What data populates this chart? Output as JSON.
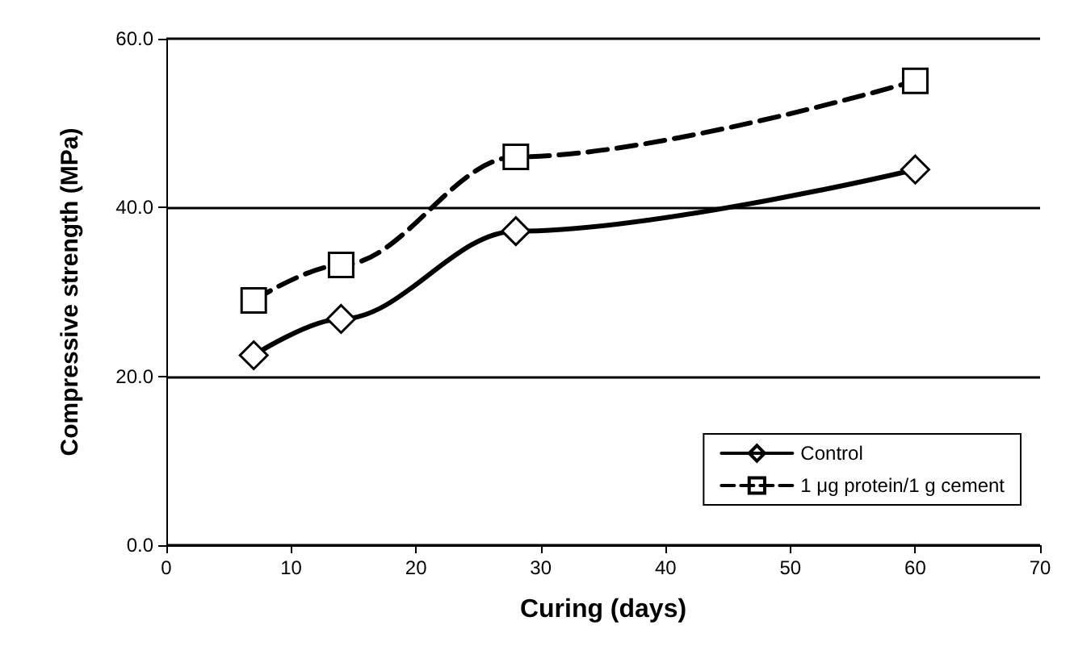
{
  "chart_data": {
    "type": "line",
    "xlabel": "Curing (days)",
    "ylabel": "Compressive strength (MPa)",
    "xlim": [
      0,
      70
    ],
    "xticks": [
      0,
      10,
      20,
      30,
      40,
      50,
      60,
      70
    ],
    "ylim": [
      0,
      60
    ],
    "yticks": [
      {
        "value": 0,
        "label": "0.0"
      },
      {
        "value": 20,
        "label": "20.0"
      },
      {
        "value": 40,
        "label": "40.0"
      },
      {
        "value": 60,
        "label": "60.0"
      }
    ],
    "grid": "y",
    "legend": "bottom right",
    "series": [
      {
        "name": "Control",
        "color": "#000000",
        "x": [
          7,
          14,
          28,
          60
        ],
        "values": [
          22.5,
          26.8,
          37.2,
          44.5
        ],
        "marker": "diamond",
        "line_style": "solid"
      },
      {
        "name": "1 μg protein/1 g cement",
        "color": "#000000",
        "x": [
          7,
          14,
          28,
          60
        ],
        "values": [
          29,
          33.2,
          46,
          55
        ],
        "marker": "square",
        "line_style": "dashed"
      }
    ]
  }
}
